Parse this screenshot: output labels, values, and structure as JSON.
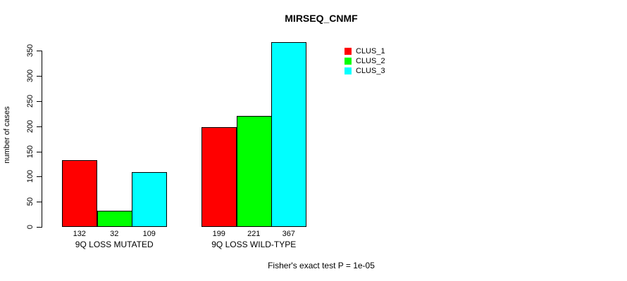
{
  "chart_data": {
    "type": "bar",
    "title": "MIRSEQ_CNMF",
    "ylabel": "number of cases",
    "xlabel": "",
    "categories": [
      "9Q LOSS MUTATED",
      "9Q LOSS WILD-TYPE"
    ],
    "series": [
      {
        "name": "CLUS_1",
        "color": "#ff0000",
        "values": [
          132,
          199
        ]
      },
      {
        "name": "CLUS_2",
        "color": "#00ff00",
        "values": [
          32,
          221
        ]
      },
      {
        "name": "CLUS_3",
        "color": "#00ffff",
        "values": [
          109,
          367
        ]
      }
    ],
    "yticks": [
      0,
      50,
      100,
      150,
      200,
      250,
      300,
      350
    ],
    "ylim": [
      0,
      367
    ],
    "grid": false,
    "bar_value_labels": true,
    "legend_position": "top-right",
    "annotation": "Fisher's exact test P = 1e-05",
    "bar_border_color": "#000000",
    "axis_color": "#000000",
    "text_color": "#000000",
    "background": "#ffffff"
  }
}
